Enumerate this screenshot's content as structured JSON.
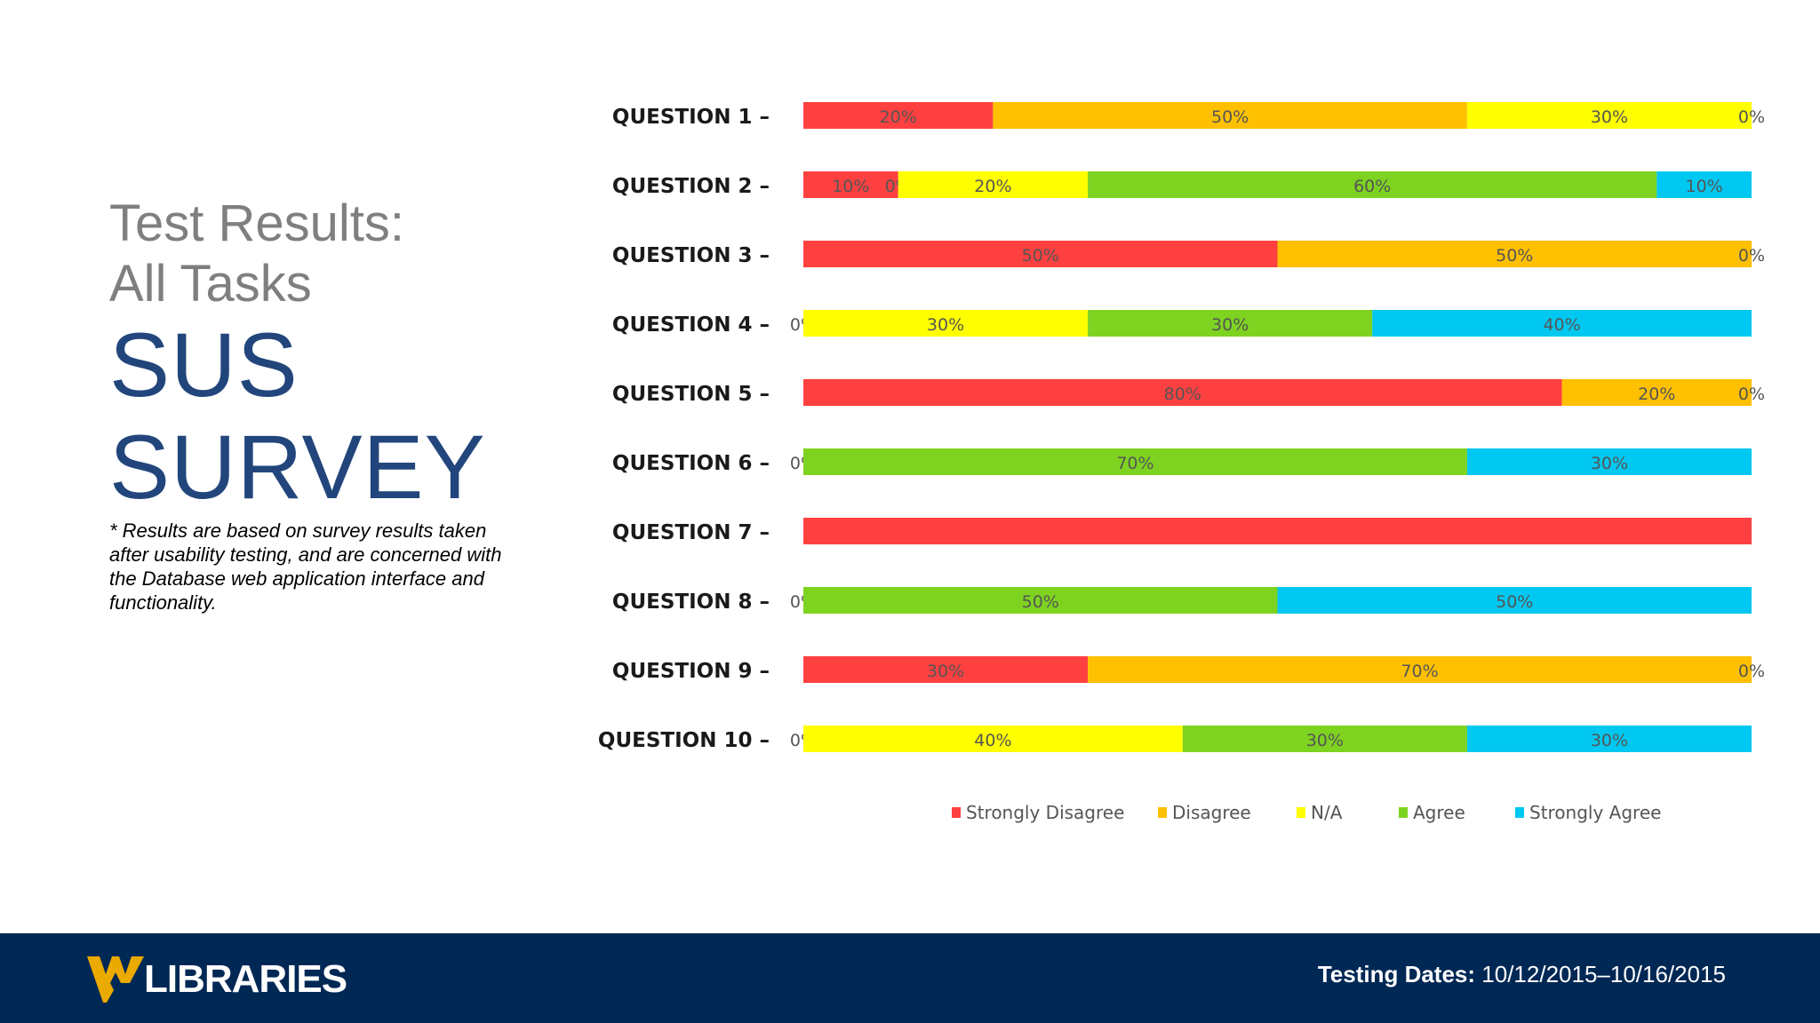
{
  "slide": {
    "subtitle_line1": "Test Results:",
    "subtitle_line2": "All Tasks",
    "title_line1": "SUS",
    "title_line2": "SURVEY",
    "note": "* Results are based on survey results taken after usability testing, and are concerned with the Database web application interface and functionality."
  },
  "footer": {
    "logo_text": "LIBRARIES",
    "dates_label": "Testing Dates:",
    "dates_value": "10/12/2015–10/16/2015",
    "background_color": "#002855",
    "logo_gold": "#EAAA00"
  },
  "chart_data": {
    "type": "bar",
    "orientation": "horizontal",
    "stacked": true,
    "categories": [
      "QUESTION 1 –",
      "QUESTION 2 –",
      "QUESTION 3 –",
      "QUESTION 4 –",
      "QUESTION 5 –",
      "QUESTION 6 –",
      "QUESTION 7 –",
      "QUESTION 8 –",
      "QUESTION 9 –",
      "QUESTION 10 –"
    ],
    "series": [
      {
        "name": "Strongly Disagree",
        "color": "#FF4040",
        "values": [
          20,
          10,
          50,
          0,
          80,
          0,
          100,
          0,
          30,
          0
        ],
        "labels": [
          "20%",
          "10%",
          "50%",
          "0%",
          "80%",
          "0%",
          "",
          "0%",
          "30%",
          "0%"
        ]
      },
      {
        "name": "Disagree",
        "color": "#FFC000",
        "values": [
          50,
          0,
          50,
          0,
          20,
          0,
          0,
          0,
          70,
          0
        ],
        "labels": [
          "50%",
          "0%",
          "50%",
          "",
          "20%",
          "",
          "",
          "",
          "70%",
          ""
        ]
      },
      {
        "name": "N/A",
        "color": "#FFFF00",
        "values": [
          30,
          20,
          0,
          30,
          0,
          0,
          0,
          0,
          0,
          40
        ],
        "labels": [
          "30%",
          "20%",
          "0%",
          "30%",
          "0%",
          "",
          "",
          "",
          "0%",
          "40%"
        ]
      },
      {
        "name": "Agree",
        "color": "#7ED321",
        "values": [
          0,
          60,
          0,
          30,
          0,
          70,
          0,
          50,
          0,
          30
        ],
        "labels": [
          "0%",
          "60%",
          "",
          "30%",
          "",
          "70%",
          "",
          "50%",
          "",
          "30%"
        ]
      },
      {
        "name": "Strongly Agree",
        "color": "#00C8F0",
        "values": [
          0,
          10,
          0,
          40,
          0,
          30,
          0,
          50,
          0,
          30
        ],
        "labels": [
          "",
          "10%",
          "",
          "40%",
          "",
          "30%",
          "",
          "50%",
          "",
          "30%"
        ]
      }
    ],
    "xlim": [
      0,
      100
    ],
    "legend_position": "bottom",
    "grid": false
  }
}
